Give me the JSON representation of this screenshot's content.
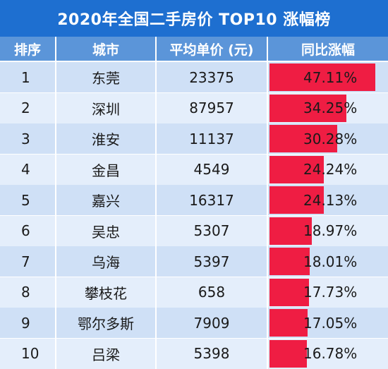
{
  "title": "2020年全国二手房价 TOP10 涨幅榜",
  "colors": {
    "title_bg": "#1e6fd0",
    "header_bg": "#5b95d9",
    "row_light": "#e4eefb",
    "row_mid": "#cfe0f6",
    "bar": "#ef1d43"
  },
  "chart_data": {
    "type": "table",
    "title": "2020年全国二手房价 TOP10 涨幅榜",
    "columns": [
      "排序",
      "城市",
      "平均单价 (元)",
      "同比涨幅"
    ],
    "rows": [
      {
        "rank": "1",
        "city": "东莞",
        "price": "23375",
        "growth": "47.11%",
        "growth_value": 47.11
      },
      {
        "rank": "2",
        "city": "深圳",
        "price": "87957",
        "growth": "34.25%",
        "growth_value": 34.25
      },
      {
        "rank": "3",
        "city": "淮安",
        "price": "11137",
        "growth": "30.28%",
        "growth_value": 30.28
      },
      {
        "rank": "4",
        "city": "金昌",
        "price": "4549",
        "growth": "24.24%",
        "growth_value": 24.24
      },
      {
        "rank": "5",
        "city": "嘉兴",
        "price": "16317",
        "growth": "24.13%",
        "growth_value": 24.13
      },
      {
        "rank": "6",
        "city": "吴忠",
        "price": "5307",
        "growth": "18.97%",
        "growth_value": 18.97
      },
      {
        "rank": "7",
        "city": "乌海",
        "price": "5397",
        "growth": "18.01%",
        "growth_value": 18.01
      },
      {
        "rank": "8",
        "city": "攀枝花",
        "price": "658",
        "growth": "17.73%",
        "growth_value": 17.73
      },
      {
        "rank": "9",
        "city": "鄂尔多斯",
        "price": "7909",
        "growth": "17.05%",
        "growth_value": 17.05
      },
      {
        "rank": "10",
        "city": "吕梁",
        "price": "5398",
        "growth": "16.78%",
        "growth_value": 16.78
      }
    ]
  }
}
